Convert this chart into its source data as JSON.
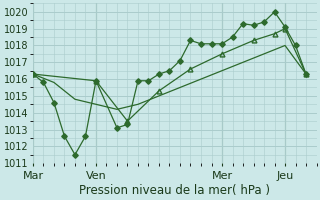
{
  "title": "Pression niveau de la mer( hPa )",
  "bg_color": "#cce8e8",
  "grid_color": "#aacccc",
  "line_color": "#2d6a2d",
  "ylim": [
    1011,
    1020.5
  ],
  "yticks": [
    1011,
    1012,
    1013,
    1014,
    1015,
    1016,
    1017,
    1018,
    1019,
    1020
  ],
  "day_labels": [
    "Mar",
    "Ven",
    "Mer",
    "Jeu"
  ],
  "day_positions": [
    0,
    3,
    9,
    12
  ],
  "xlim": [
    0,
    13.5
  ],
  "series1_x": [
    0,
    0.5,
    1,
    1.5,
    2,
    2.5,
    3,
    4,
    4.5,
    5,
    5.5,
    6,
    6.5,
    7,
    7.5,
    8,
    8.5,
    9,
    9.5,
    10,
    10.5,
    11,
    11.5,
    12,
    12.5,
    13
  ],
  "series1_y": [
    1016.3,
    1015.8,
    1014.6,
    1012.6,
    1011.5,
    1012.6,
    1015.9,
    1013.1,
    1013.3,
    1015.9,
    1015.9,
    1016.3,
    1016.5,
    1017.1,
    1018.3,
    1018.1,
    1018.1,
    1018.1,
    1018.5,
    1019.3,
    1019.2,
    1019.4,
    1020.0,
    1019.1,
    1018.0,
    1016.3
  ],
  "series2_x": [
    0,
    1,
    2,
    3,
    4,
    5,
    6,
    7,
    8,
    9,
    10,
    11,
    12,
    13
  ],
  "series2_y": [
    1016.3,
    1015.8,
    1014.8,
    1014.5,
    1014.2,
    1014.5,
    1015.0,
    1015.5,
    1016.0,
    1016.5,
    1017.0,
    1017.5,
    1018.0,
    1016.3
  ],
  "series3_x": [
    0,
    3,
    4.5,
    6,
    7.5,
    9,
    10.5,
    11.5,
    12,
    13
  ],
  "series3_y": [
    1016.3,
    1015.9,
    1013.5,
    1015.3,
    1016.6,
    1017.5,
    1018.3,
    1018.7,
    1019.0,
    1016.3
  ]
}
